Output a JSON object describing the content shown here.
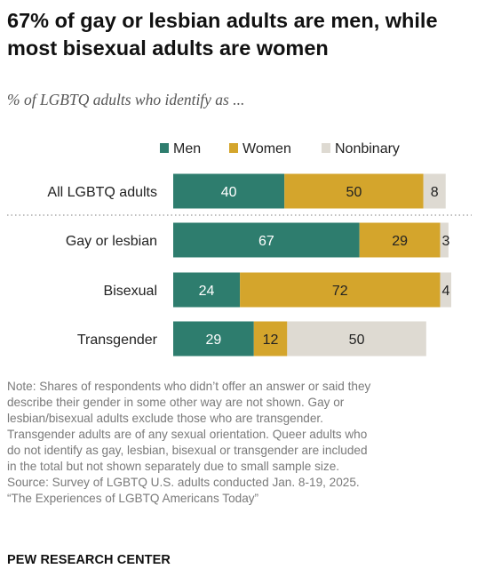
{
  "header": {
    "title": "67% of gay or lesbian adults are men, while most bisexual adults are women",
    "subtitle": "% of LGBTQ adults who identify as ..."
  },
  "chart_data": {
    "type": "bar",
    "orientation": "horizontal",
    "stacked": true,
    "categories": [
      "All LGBTQ adults",
      "Gay or lesbian",
      "Bisexual",
      "Transgender"
    ],
    "series": [
      {
        "name": "Men",
        "values": [
          40,
          67,
          24,
          29
        ],
        "color": "#2e7d6e"
      },
      {
        "name": "Women",
        "values": [
          50,
          29,
          72,
          12
        ],
        "color": "#d4a52c"
      },
      {
        "name": "Nonbinary",
        "values": [
          8,
          3,
          4,
          50
        ],
        "color": "#dedad2"
      }
    ],
    "legend_position": "top",
    "xlim": [
      0,
      100
    ],
    "grid": false
  },
  "note": [
    "Note: Shares of respondents who didn’t offer an answer or said they",
    "describe their gender in some other way are not shown. Gay or",
    "lesbian/bisexual adults exclude those who are transgender.",
    "Transgender adults are of any sexual orientation. Queer adults who",
    "do not identify as gay, lesbian, bisexual or transgender are included",
    "in the total but not shown separately due to small sample size.",
    "Source: Survey of LGBTQ U.S. adults conducted Jan. 8-19, 2025.",
    "“The Experiences of LGBTQ Americans Today”"
  ],
  "footer": {
    "logo_text": "PEW RESEARCH CENTER"
  }
}
